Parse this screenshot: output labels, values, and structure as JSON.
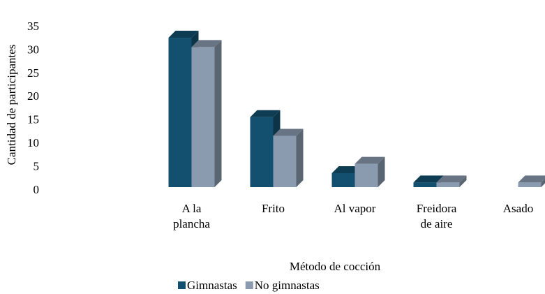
{
  "chart_data": {
    "type": "bar3d",
    "x_label": "Método de cocción",
    "y_label": "Cantidad de participantes",
    "categories": [
      "A la plancha",
      "Frito",
      "Al vapor",
      "Freidora de aire",
      "Asado"
    ],
    "series": [
      {
        "name": "Gimnastas",
        "color": "#13506f",
        "values": [
          32,
          15,
          3,
          1,
          0
        ]
      },
      {
        "name": "No gimnastas",
        "color": "#8a9bb0",
        "values": [
          30,
          11,
          5,
          1,
          1
        ]
      }
    ],
    "ylim": [
      0,
      35
    ],
    "yticks": [
      0,
      5,
      10,
      15,
      20,
      25,
      30,
      35
    ],
    "legend": "bottom"
  }
}
